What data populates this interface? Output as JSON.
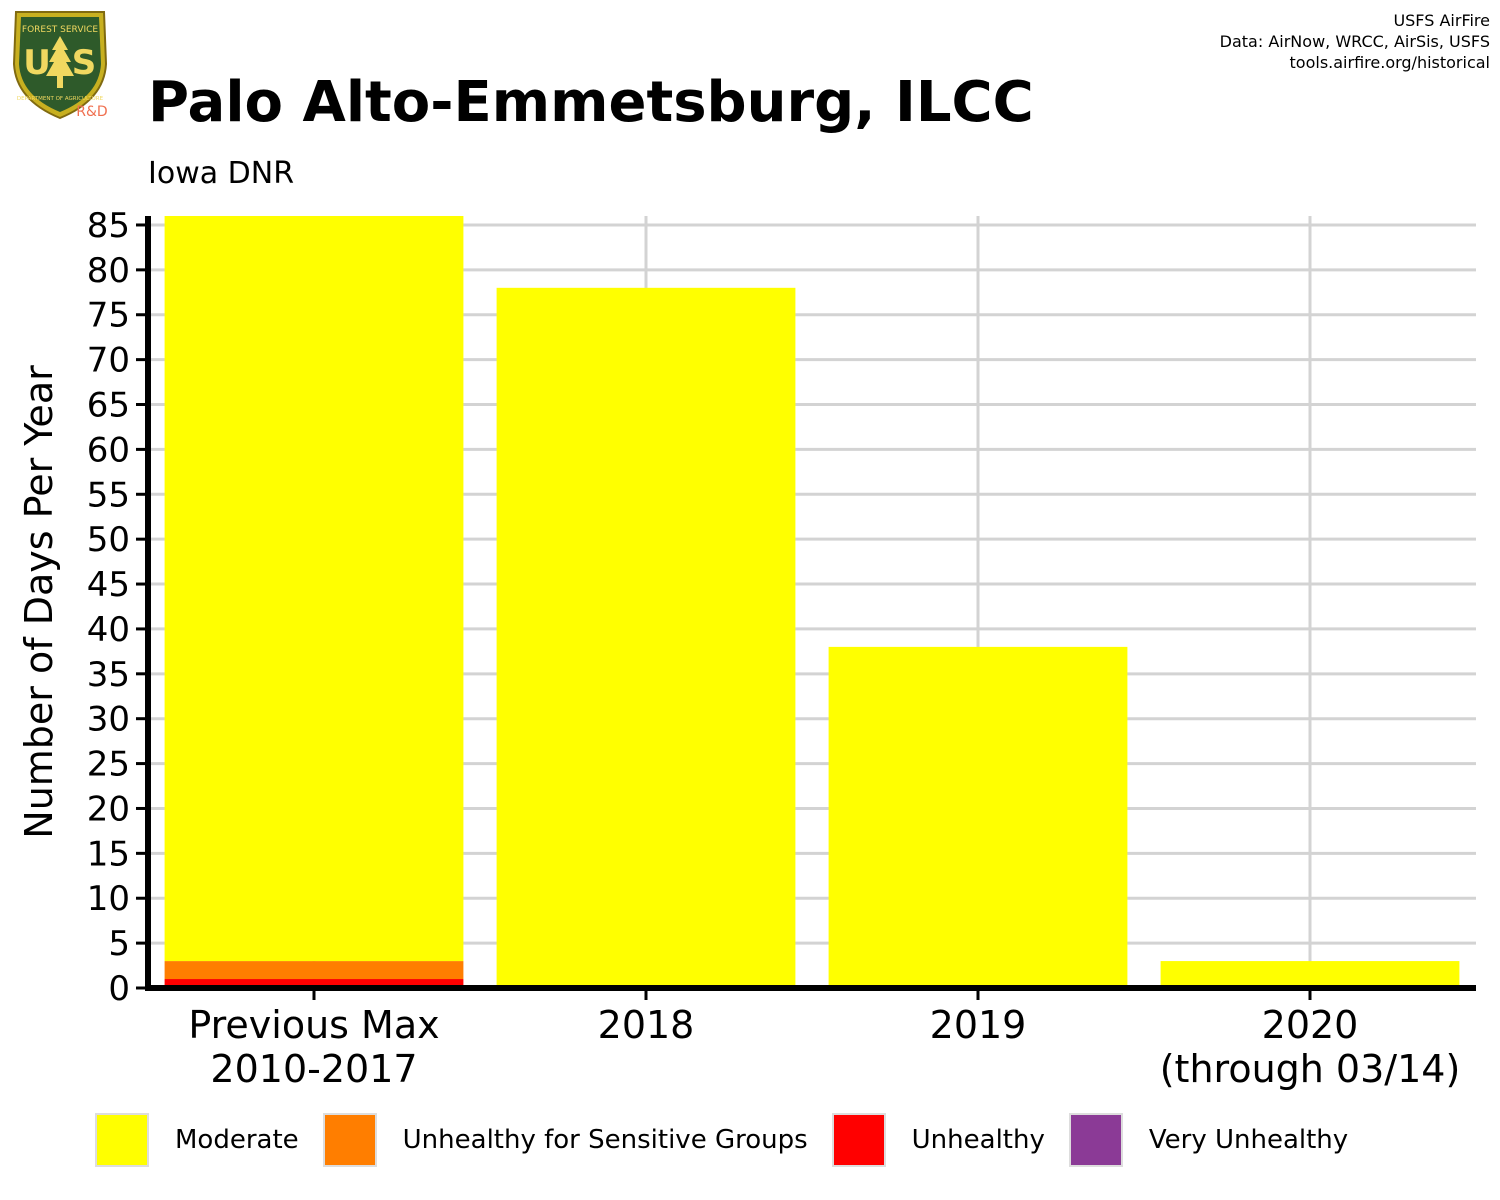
{
  "header": {
    "title": "Palo Alto-Emmetsburg, ILCC",
    "subtitle": "Iowa DNR",
    "credits": [
      "USFS AirFire",
      "Data: AirNow, WRCC, AirSis, USFS",
      "tools.airfire.org/historical"
    ]
  },
  "logo": {
    "letters_left": "U",
    "letters_right": "S",
    "top_text": "FOREST SERVICE",
    "bottom_text": "DEPARTMENT OF AGRICULTURE",
    "tag": "R&D",
    "icon": "forest-service-shield-icon"
  },
  "chart_data": {
    "type": "bar",
    "stacked": true,
    "ylabel": "Number of Days Per Year",
    "xlabel": "",
    "ylim": [
      0,
      86
    ],
    "yticks": [
      0,
      5,
      10,
      15,
      20,
      25,
      30,
      35,
      40,
      45,
      50,
      55,
      60,
      65,
      70,
      75,
      80,
      85
    ],
    "categories": [
      [
        "Previous Max",
        "2010-2017"
      ],
      [
        "2018"
      ],
      [
        "2019"
      ],
      [
        "2020",
        "(through 03/14)"
      ]
    ],
    "series": [
      {
        "name": "Very Unhealthy",
        "color": "#8B3A96",
        "values": [
          0,
          0,
          0,
          0
        ]
      },
      {
        "name": "Unhealthy",
        "color": "#FF0000",
        "values": [
          1,
          0,
          0,
          0
        ]
      },
      {
        "name": "Unhealthy for Sensitive Groups",
        "color": "#FF7E00",
        "values": [
          2,
          0,
          0,
          0
        ]
      },
      {
        "name": "Moderate",
        "color": "#FFFF00",
        "values": [
          83,
          78,
          38,
          3
        ]
      }
    ],
    "legend_order": [
      "Moderate",
      "Unhealthy for Sensitive Groups",
      "Unhealthy",
      "Very Unhealthy"
    ],
    "grid": true,
    "legend_position": "bottom"
  }
}
